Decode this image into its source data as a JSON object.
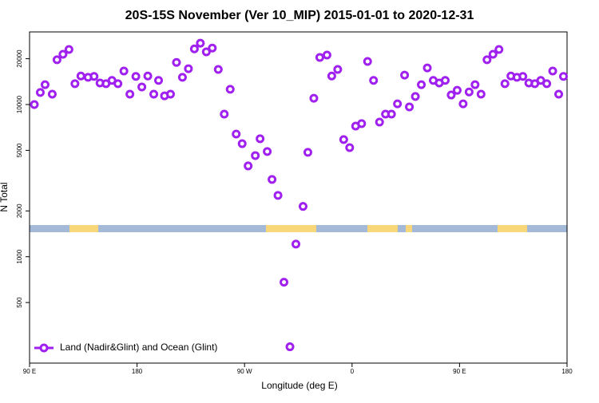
{
  "chart_data": {
    "type": "scatter",
    "title": "20S-15S November (Ver 10_MIP)   2015-01-01 to 2020-12-31",
    "xlabel": "Longitude (deg E)",
    "ylabel": "N Total",
    "log_y": true,
    "legend_position": "bottom-left",
    "xlim": [
      90,
      540
    ],
    "xticks": [
      {
        "value": 90,
        "label": "90 E"
      },
      {
        "value": 180,
        "label": "180"
      },
      {
        "value": 270,
        "label": "90 W"
      },
      {
        "value": 360,
        "label": "0"
      },
      {
        "value": 450,
        "label": "90 E"
      },
      {
        "value": 540,
        "label": "180"
      }
    ],
    "ylim": [
      200,
      30000
    ],
    "yticks": [
      500,
      1000,
      2000,
      5000,
      10000,
      20000
    ],
    "series": [
      {
        "name": "Land (Nadir&Glint) and Ocean (Glint)",
        "color": "#a020f0",
        "x": [
          94,
          99,
          103,
          109,
          113,
          118,
          123,
          128,
          133,
          139,
          144,
          149,
          154,
          159,
          164,
          169,
          174,
          179,
          184,
          189,
          194,
          198,
          203,
          208,
          213,
          218,
          223,
          228,
          233,
          238,
          243,
          248,
          253,
          258,
          263,
          268,
          273,
          279,
          283,
          289,
          293,
          298,
          303,
          308,
          313,
          319,
          323,
          328,
          333,
          339,
          343,
          348,
          353,
          358,
          363,
          368,
          373,
          378,
          383,
          388,
          393,
          398,
          404,
          408,
          413,
          418,
          423,
          428,
          433,
          438,
          443,
          448,
          453,
          458,
          463,
          468,
          473,
          478,
          483,
          488,
          493,
          498,
          503,
          508,
          513,
          518,
          523,
          528,
          533,
          537
        ],
        "values": [
          10000,
          12000,
          13500,
          11700,
          19700,
          21400,
          23000,
          13700,
          15400,
          15100,
          15300,
          13850,
          13700,
          14400,
          13700,
          16600,
          11700,
          15300,
          13050,
          15400,
          11700,
          14400,
          11400,
          11700,
          18900,
          15100,
          17200,
          23200,
          25300,
          22200,
          23500,
          17000,
          8650,
          12600,
          6400,
          5530,
          3950,
          4620,
          5960,
          4910,
          3220,
          2530,
          680,
          256,
          1210,
          2140,
          4850,
          11000,
          20400,
          21150,
          15400,
          17000,
          5890,
          5210,
          7220,
          7490,
          19200,
          14400,
          7670,
          8650,
          8650,
          10100,
          15600,
          9650,
          11300,
          13500,
          17400,
          14400,
          13850,
          14400,
          11550,
          12400,
          10100,
          12100,
          13500,
          11700,
          19700,
          21400,
          23000,
          13700,
          15400,
          15100,
          15300,
          13850,
          13700,
          14400,
          13700,
          16600,
          11700,
          15300
        ]
      }
    ]
  }
}
